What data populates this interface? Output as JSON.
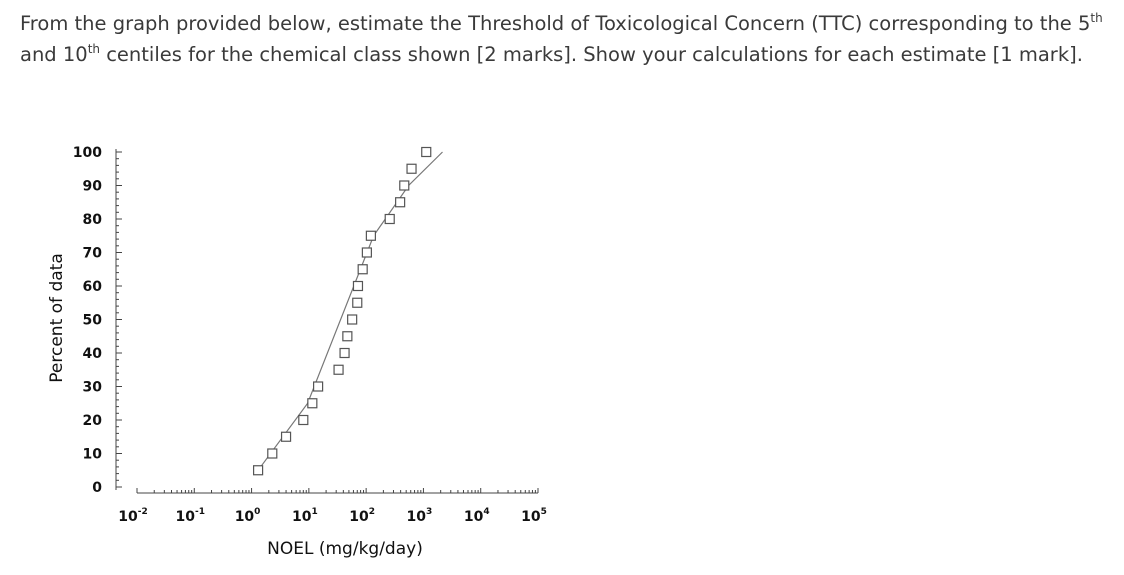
{
  "question": {
    "part1": "From the graph provided below, estimate the Threshold of Toxicological Concern (TTC) corresponding to the ",
    "ord1_num": "5",
    "ord1_sup": "th",
    "part2": " and 10",
    "ord2_sup": "th",
    "part3": " centiles for the chemical class shown [2 marks]. Show your calculations for each estimate [1 mark]."
  },
  "chart_data": {
    "type": "scatter",
    "xlabel": "NOEL (mg/kg/day)",
    "ylabel": "Percent of data",
    "x_scale": "log",
    "xlim": [
      0.01,
      100000
    ],
    "ylim": [
      0,
      100
    ],
    "x_tick_labels": [
      {
        "base": "10",
        "exp": "-2",
        "value": 0.01
      },
      {
        "base": "10",
        "exp": "-1",
        "value": 0.1
      },
      {
        "base": "10",
        "exp": "0",
        "value": 1
      },
      {
        "base": "10",
        "exp": "1",
        "value": 10
      },
      {
        "base": "10",
        "exp": "2",
        "value": 100
      },
      {
        "base": "10",
        "exp": "3",
        "value": 1000
      },
      {
        "base": "10",
        "exp": "4",
        "value": 10000
      },
      {
        "base": "10",
        "exp": "5",
        "value": 100000
      }
    ],
    "y_ticks": [
      0,
      10,
      20,
      30,
      40,
      50,
      60,
      70,
      80,
      90,
      100
    ],
    "y_tick_labels": [
      "0",
      "10",
      "20",
      "30",
      "40",
      "50",
      "60",
      "70",
      "80",
      "90",
      "100"
    ],
    "series": [
      {
        "marker": "open-square",
        "points": [
          {
            "x": 1.3,
            "y": 5
          },
          {
            "x": 2.3,
            "y": 10
          },
          {
            "x": 4.0,
            "y": 15
          },
          {
            "x": 8.0,
            "y": 20
          },
          {
            "x": 11.5,
            "y": 25
          },
          {
            "x": 14.5,
            "y": 30
          },
          {
            "x": 33,
            "y": 35
          },
          {
            "x": 42,
            "y": 40
          },
          {
            "x": 47,
            "y": 45
          },
          {
            "x": 57,
            "y": 50
          },
          {
            "x": 70,
            "y": 55
          },
          {
            "x": 72,
            "y": 60
          },
          {
            "x": 87,
            "y": 65
          },
          {
            "x": 103,
            "y": 70
          },
          {
            "x": 121,
            "y": 75
          },
          {
            "x": 258,
            "y": 80
          },
          {
            "x": 392,
            "y": 85
          },
          {
            "x": 463,
            "y": 90
          },
          {
            "x": 620,
            "y": 95
          },
          {
            "x": 1120,
            "y": 100
          }
        ]
      }
    ],
    "fit_line": {
      "points": [
        {
          "x": 1.3,
          "y": 5
        },
        {
          "x": 9.5,
          "y": 25
        },
        {
          "x": 135,
          "y": 75
        },
        {
          "x": 550,
          "y": 90
        },
        {
          "x": 2150,
          "y": 100
        }
      ]
    },
    "grid": false,
    "colors": {
      "marker": "#555555",
      "line": "#777777",
      "axis": "#444444"
    }
  }
}
